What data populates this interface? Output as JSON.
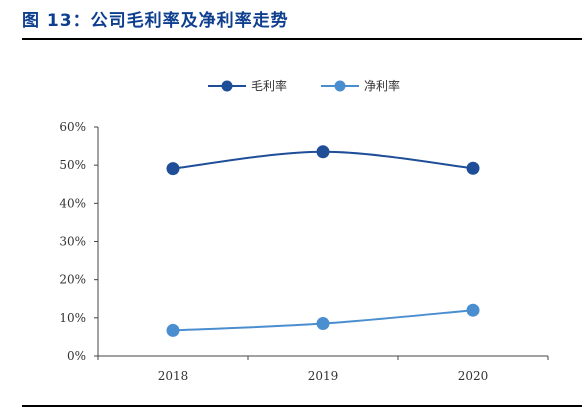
{
  "page": {
    "title": "图 13：公司毛利率及净利率走势"
  },
  "chart_data": {
    "type": "line",
    "categories": [
      "2018",
      "2019",
      "2020"
    ],
    "series": [
      {
        "name": "毛利率",
        "values": [
          49.1,
          53.5,
          49.2
        ],
        "color": "#1f4e99"
      },
      {
        "name": "净利率",
        "values": [
          6.7,
          8.5,
          12.0
        ],
        "color": "#4a8ed0"
      }
    ],
    "y_ticks": [
      "0%",
      "10%",
      "20%",
      "30%",
      "40%",
      "50%",
      "60%"
    ],
    "ylim": [
      0,
      60
    ],
    "legend_position": "top-center",
    "grid": false,
    "smooth": true
  }
}
